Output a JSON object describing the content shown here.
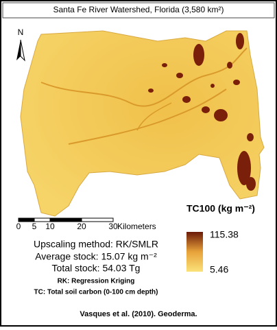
{
  "title": "Santa Fe River Watershed, Florida (3,580 km²)",
  "north_label": "N",
  "scale_bar": {
    "ticks": [
      0,
      5,
      10,
      20,
      30
    ],
    "unit": "Kilometers"
  },
  "legend": {
    "title": "TC100 (kg m⁻²)",
    "max": 115.38,
    "min": 5.46,
    "color_low": "#fbe27a",
    "color_high": "#6b1a08"
  },
  "notes": [
    "Upscaling method: RK/SMLR",
    "Average stock: 15.07 kg m⁻²",
    "Total stock: 54.03 Tg"
  ],
  "abbreviations": [
    "RK: Regression Kriging",
    "TC: Total soil carbon (0-100 cm depth)"
  ],
  "citation": "Vasques et al. (2010). Geoderma."
}
